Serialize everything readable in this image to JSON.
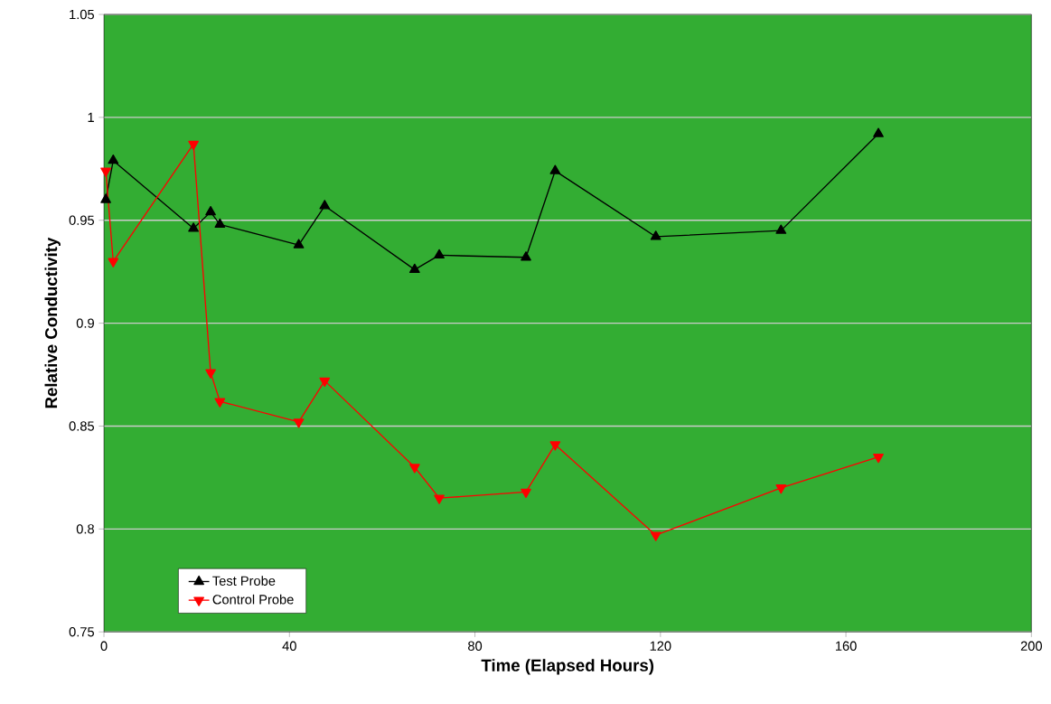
{
  "chart_data": {
    "type": "line",
    "xlabel": "Time (Elapsed Hours)",
    "ylabel": "Relative Conductivity",
    "x": [
      0.4,
      2,
      19.3,
      23,
      25,
      42,
      47.6,
      67,
      72.3,
      91,
      97.3,
      119,
      146,
      167
    ],
    "series": [
      {
        "name": "Test Probe",
        "color": "#000000",
        "values": [
          0.96,
          0.979,
          0.946,
          0.954,
          0.948,
          0.938,
          0.957,
          0.926,
          0.933,
          0.932,
          0.974,
          0.942,
          0.945,
          0.992
        ]
      },
      {
        "name": "Control Probe",
        "color": "#ff0000",
        "values": [
          0.974,
          0.93,
          0.987,
          0.876,
          0.862,
          0.852,
          0.872,
          0.83,
          0.815,
          0.818,
          0.841,
          0.797,
          0.82,
          0.835
        ]
      }
    ],
    "xlim": [
      0,
      200
    ],
    "xticks": [
      0,
      40,
      80,
      120,
      160,
      200
    ],
    "ylim": [
      0.75,
      1.05
    ],
    "yticks": [
      0.75,
      0.8,
      0.85,
      0.9,
      0.95,
      1,
      1.05
    ],
    "grid": "y",
    "legend": "bottom left",
    "marker": "triangle",
    "line_style": "solid"
  }
}
